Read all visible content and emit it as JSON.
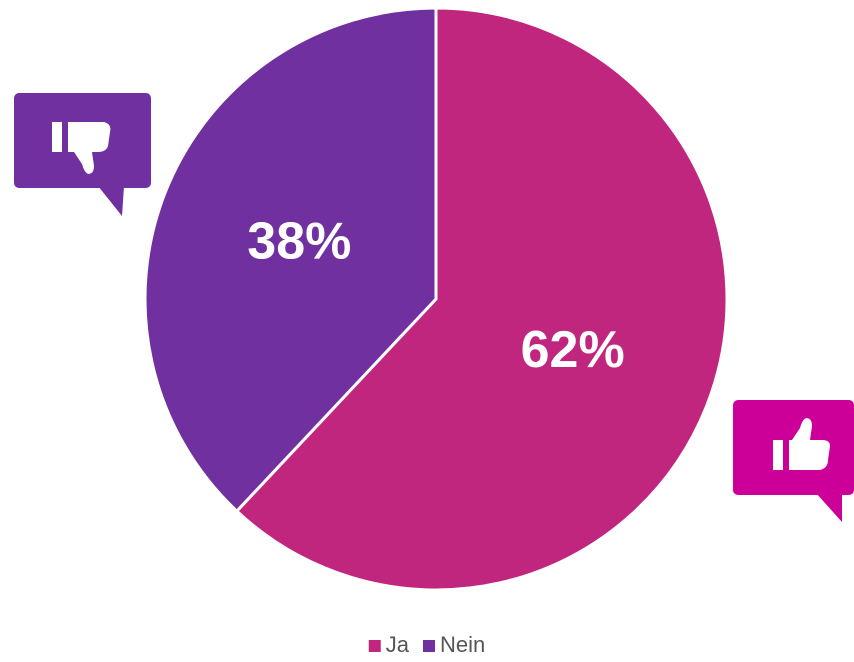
{
  "chart_data": {
    "type": "pie",
    "categories": [
      "Ja",
      "Nein"
    ],
    "values": [
      62,
      38
    ],
    "value_labels": [
      "62%",
      "38%"
    ],
    "colors": [
      "#c0267e",
      "#7030a0"
    ],
    "legend": "bottom"
  }
}
